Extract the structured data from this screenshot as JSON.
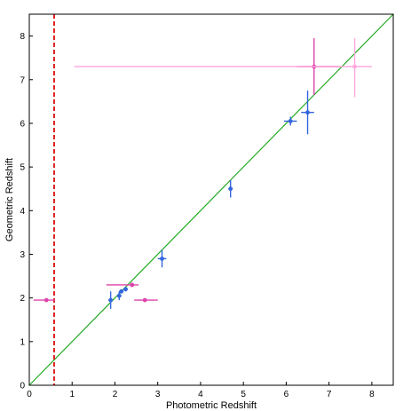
{
  "chart_data": {
    "type": "scatter",
    "title": "",
    "xlabel": "Photometric Redshift",
    "ylabel": "Geometric Redshift",
    "xlim": [
      0,
      8.5
    ],
    "ylim": [
      0,
      8.5
    ],
    "xticks": [
      "0",
      "1",
      "2",
      "3",
      "4",
      "5",
      "6",
      "7",
      "8"
    ],
    "yticks": [
      "0",
      "1",
      "2",
      "3",
      "4",
      "5",
      "6",
      "7",
      "8"
    ],
    "grid": false,
    "legend": "none",
    "reference_lines": [
      {
        "kind": "one-to-one",
        "from": [
          0,
          0
        ],
        "to": [
          8.5,
          8.5
        ],
        "color": "#22aa22",
        "style": "solid"
      },
      {
        "kind": "vertical",
        "x": 0.58,
        "color": "#dd2222",
        "style": "dashed"
      }
    ],
    "series": [
      {
        "color": "#3366dd",
        "points": [
          {
            "x": 1.9,
            "y": 1.95,
            "xerr": [
              0.05,
              0.05
            ],
            "yerr": [
              0.2,
              0.2
            ]
          },
          {
            "x": 2.1,
            "y": 2.05,
            "xerr": [
              0.05,
              0.05
            ],
            "yerr": [
              0.1,
              0.1
            ]
          },
          {
            "x": 2.15,
            "y": 2.15,
            "xerr": [
              0.05,
              0.05
            ],
            "yerr": [
              0.05,
              0.05
            ]
          },
          {
            "x": 2.25,
            "y": 2.2,
            "xerr": [
              0.05,
              0.05
            ],
            "yerr": [
              0.05,
              0.05
            ]
          },
          {
            "x": 3.1,
            "y": 2.9,
            "xerr": [
              0.1,
              0.1
            ],
            "yerr": [
              0.2,
              0.2
            ]
          },
          {
            "x": 4.7,
            "y": 4.5,
            "xerr": [
              0.05,
              0.05
            ],
            "yerr": [
              0.2,
              0.2
            ]
          },
          {
            "x": 6.1,
            "y": 6.05,
            "xerr": [
              0.15,
              0.15
            ],
            "yerr": [
              0.1,
              0.1
            ]
          },
          {
            "x": 6.5,
            "y": 6.25,
            "xerr": [
              0.15,
              0.15
            ],
            "yerr": [
              0.5,
              0.5
            ]
          }
        ]
      },
      {
        "color": "#dd44aa",
        "points": [
          {
            "x": 0.4,
            "y": 1.95,
            "xerr": [
              0.3,
              0.2
            ],
            "yerr": [
              0,
              0
            ]
          },
          {
            "x": 2.4,
            "y": 2.3,
            "xerr": [
              0.6,
              0.15
            ],
            "yerr": [
              0.05,
              0.05
            ]
          },
          {
            "x": 2.7,
            "y": 1.95,
            "xerr": [
              0.25,
              0.3
            ],
            "yerr": [
              0,
              0
            ]
          },
          {
            "x": 6.65,
            "y": 7.3,
            "xerr": [
              0.4,
              0.6
            ],
            "yerr": [
              0.65,
              0.65
            ]
          }
        ]
      },
      {
        "color": "#ffaadd",
        "points": [
          {
            "x": 7.6,
            "y": 7.3,
            "xerr": [
              6.55,
              0.4
            ],
            "yerr": [
              0.7,
              0.65
            ]
          }
        ]
      }
    ]
  }
}
